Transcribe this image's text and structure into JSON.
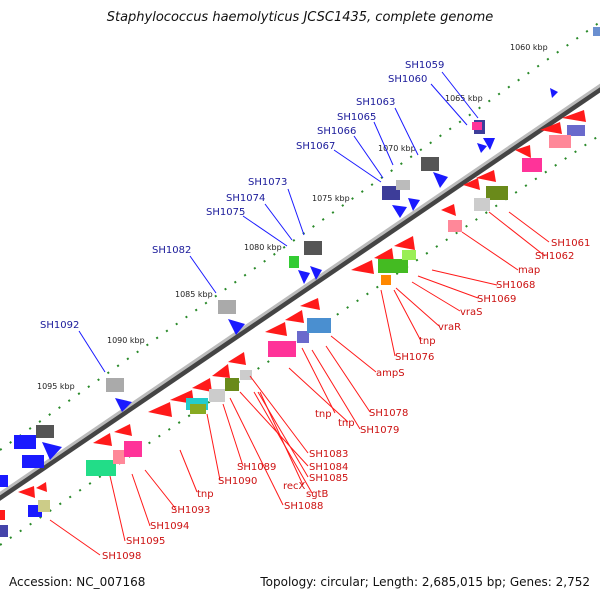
{
  "title": "Staphylococcus haemolyticus JCSC1435, complete genome",
  "accession": "Accession: NC_007168",
  "summary": "Topology: circular; Length: 2,685,015 bp; Genes: 2,752",
  "colors": {
    "forward_genes": "#1a1aff",
    "reverse_genes": "#ff1a1a",
    "forward_label": "#1a1a9a",
    "reverse_label": "#cc1111",
    "backbone": "#777777",
    "kbp_ticks": "#2a8a2a"
  },
  "kbp_markers": [
    "1060 kbp",
    "1065 kbp",
    "1070 kbp",
    "1075 kbp",
    "1080 kbp",
    "1085 kbp",
    "1090 kbp",
    "1095 kbp"
  ],
  "forward_labels": [
    "SH1059",
    "SH1060",
    "SH1063",
    "SH1065",
    "SH1066",
    "SH1067",
    "SH1073",
    "SH1074",
    "SH1075",
    "SH1082",
    "SH1092"
  ],
  "reverse_labels": [
    "SH1061",
    "SH1062",
    "map",
    "SH1068",
    "SH1069",
    "vraS",
    "vraR",
    "tnp",
    "SH1076",
    "ampS",
    "SH1078",
    "tnp",
    "SH1079",
    "tnp",
    "SH1083",
    "SH1084",
    "SH1085",
    "recX",
    "sgtB",
    "SH1088",
    "SH1089",
    "SH1090",
    "tnp",
    "SH1093",
    "SH1094",
    "SH1095",
    "SH1098"
  ]
}
